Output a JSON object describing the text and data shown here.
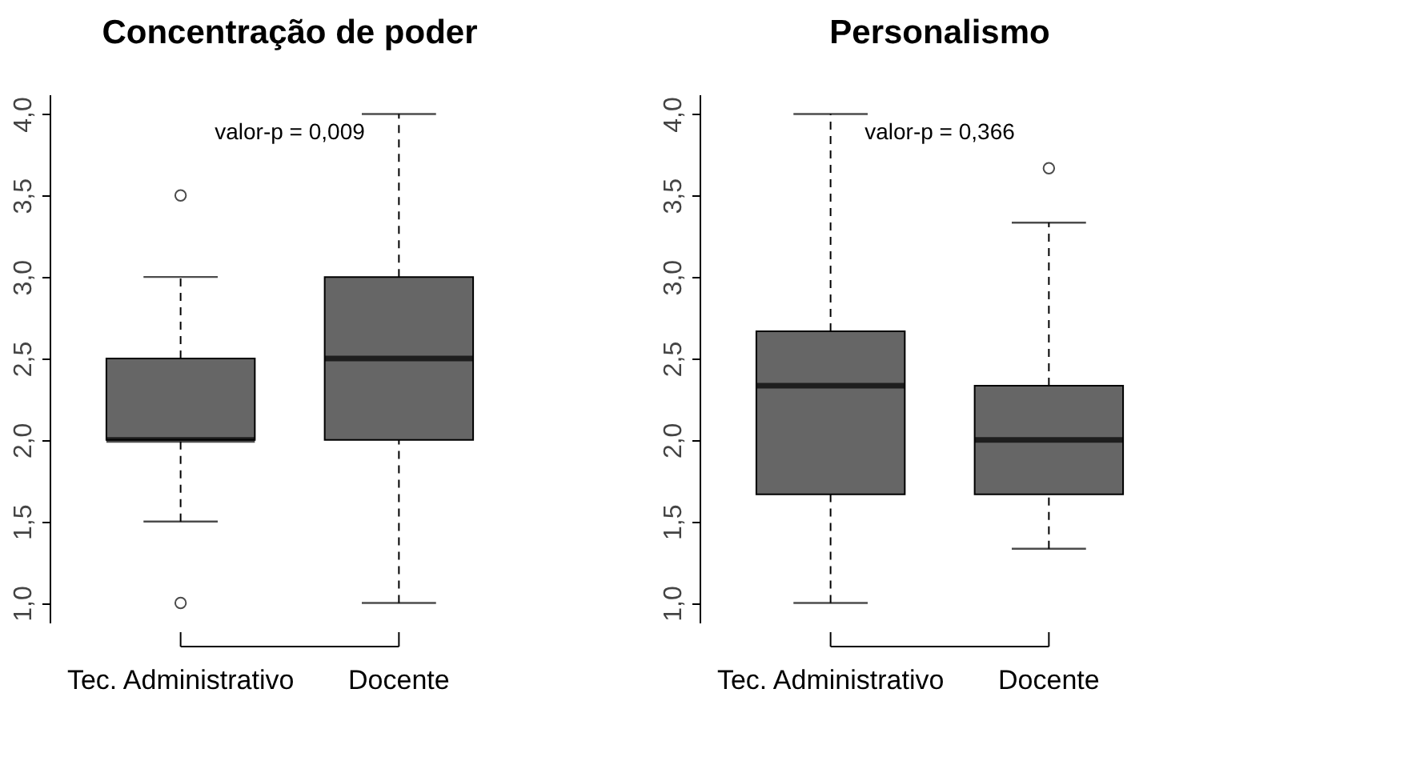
{
  "chart_data": [
    {
      "type": "box",
      "title": "Concentração de poder",
      "categories": [
        "Tec. Administrativo",
        "Docente"
      ],
      "colors": [
        "#666666",
        "#666666"
      ],
      "boxes": [
        {
          "low": 1.5,
          "q1": 2.0,
          "median": 2.0,
          "q3": 2.5,
          "high": 3.0,
          "outliers": [
            3.5,
            1.0
          ]
        },
        {
          "low": 1.0,
          "q1": 2.0,
          "median": 2.5,
          "q3": 3.0,
          "high": 4.0
        }
      ],
      "ylim": [
        0.88,
        4.12
      ],
      "yticks": [
        {
          "value": 1,
          "label": "1,0"
        },
        {
          "value": 1.5,
          "label": "1,5"
        },
        {
          "value": 2,
          "label": "2,0"
        },
        {
          "value": 2.5,
          "label": "2,5"
        },
        {
          "value": 3,
          "label": "3,0"
        },
        {
          "value": 3.5,
          "label": "3,5"
        },
        {
          "value": 4,
          "label": "4,0"
        }
      ],
      "annotations": [
        "valor-p = 0,009"
      ],
      "grid": false
    },
    {
      "type": "box",
      "title": "Personalismo",
      "categories": [
        "Tec. Administrativo",
        "Docente"
      ],
      "colors": [
        "#666666",
        "#666666"
      ],
      "boxes": [
        {
          "low": 1.0,
          "q1": 1.667,
          "median": 2.333,
          "q3": 2.667,
          "high": 4.0
        },
        {
          "low": 1.333,
          "q1": 1.667,
          "median": 2.0,
          "q3": 2.333,
          "high": 3.333,
          "outliers": [
            3.667
          ]
        }
      ],
      "ylim": [
        0.88,
        4.12
      ],
      "yticks": [
        {
          "value": 1,
          "label": "1,0"
        },
        {
          "value": 1.5,
          "label": "1,5"
        },
        {
          "value": 2,
          "label": "2,0"
        },
        {
          "value": 2.5,
          "label": "2,5"
        },
        {
          "value": 3,
          "label": "3,0"
        },
        {
          "value": 3.5,
          "label": "3,5"
        },
        {
          "value": 4,
          "label": "4,0"
        }
      ],
      "annotations": [
        "valor-p = 0,366"
      ],
      "grid": false
    }
  ]
}
